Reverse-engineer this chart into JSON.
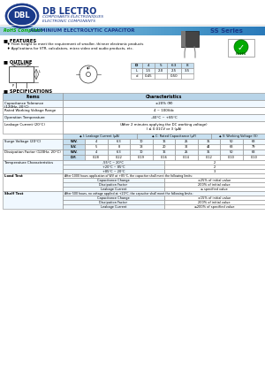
{
  "title_rohs": "RoHS Compliant",
  "title_main": "ALUMINIUM ELECTROLYTIC CAPACITOR",
  "title_series": "SS Series",
  "company_name": "DB LECTRO",
  "company_sub1": "COMPOSANTS ÉLECTRONIQUES",
  "company_sub2": "ELECTRONIC COMPONENTS",
  "features_title": "FEATURES",
  "features": [
    "From height to meet the requirement of smaller, thinner electronic products",
    "Applications for VTR, calculators, micro video and audio products, etc."
  ],
  "outline_title": "OUTLINE",
  "specs_title": "SPECIFICATIONS",
  "outline_table": {
    "headers": [
      "D",
      "4",
      "5",
      "6.3",
      "8"
    ],
    "row1_label": "L",
    "row1": [
      "1.5",
      "2.0",
      "2.5",
      "3.5"
    ],
    "row2_label": "d",
    "row2": [
      "0.45",
      "",
      "0.50",
      ""
    ]
  },
  "spec_rows": [
    {
      "item": "Capacitance Tolerance\n(120Hz, 20°C)",
      "char": "±20% (M)"
    },
    {
      "item": "Rated Working Voltage Range",
      "char": "4 ~ 100Vdc"
    },
    {
      "item": "Operation Temperature",
      "char": "-40°C ~ +85°C"
    },
    {
      "item": "Leakage Current (20°C)",
      "char": "(After 2 minutes applying the DC working voltage)\nI ≤ 0.01CV or 3 (μA)"
    }
  ],
  "surge_title": "Surge Voltage (20°C)",
  "surge_headers": [
    "I: Leakage Current (μA)",
    "C: Rated Capacitance (μF)",
    "V: Working Voltage (V)"
  ],
  "surge_wv": [
    "W.V.",
    "4",
    "6.3",
    "10",
    "16",
    "25",
    "35",
    "50",
    "63"
  ],
  "surge_sv": [
    "S.V.",
    "5",
    "8",
    "13",
    "20",
    "32",
    "44",
    "63",
    "79"
  ],
  "dissipation_title": "Dissipation Factor (120Hz, 20°C)",
  "dissipation_rows": [
    [
      "W.V.",
      "4",
      "6.3",
      "10",
      "16",
      "25",
      "35",
      "50",
      "63"
    ],
    [
      "D.F.",
      "0.28",
      "0.22",
      "0.19",
      "0.16",
      "0.14",
      "0.12",
      "0.10",
      "0.10"
    ]
  ],
  "temp_title": "Temperature Characteristics",
  "temp_rows": [
    [
      "-55°C ~ 20°C",
      "2"
    ],
    [
      "+20°C ~ 85°C",
      "2"
    ],
    [
      "+85°C ~ 20°C",
      "3"
    ]
  ],
  "load_title": "Load Test",
  "load_note": "After 1000 hours application of WV at +85°C, the capacitor shall meet the following limits:",
  "load_rows": [
    [
      "Capacitance Change",
      "±25% of initial value"
    ],
    [
      "Dissipation Factor",
      "200% of initial value"
    ],
    [
      "Leakage Current",
      "≤ specified value"
    ]
  ],
  "shelf_title": "Shelf Test",
  "shelf_note": "After 500 hours, no voltage applied at +20°C, the capacitor shall meet the following limits:",
  "shelf_rows": [
    [
      "Capacitance Change",
      "±15% of initial value"
    ],
    [
      "Dissipation Factor",
      "200% of initial value"
    ],
    [
      "Leakage Current",
      "≤200% of specified value"
    ]
  ],
  "bg_color": "#ffffff",
  "header_blue": "#1a3a8a",
  "bar_color": "#a8cce8"
}
